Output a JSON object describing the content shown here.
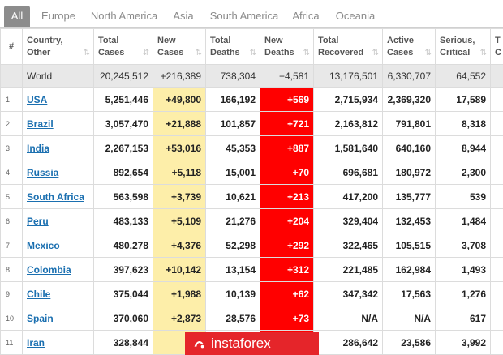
{
  "tabs": [
    "All",
    "Europe",
    "North America",
    "Asia",
    "South America",
    "Africa",
    "Oceania"
  ],
  "headers": {
    "hash": "#",
    "country": [
      "Country,",
      "Other"
    ],
    "total_cases": [
      "Total",
      "Cases"
    ],
    "new_cases": [
      "New",
      "Cases"
    ],
    "total_deaths": [
      "Total",
      "Deaths"
    ],
    "new_deaths": [
      "New",
      "Deaths"
    ],
    "total_recovered": [
      "Total",
      "Recovered"
    ],
    "active_cases": [
      "Active",
      "Cases"
    ],
    "serious_critical": [
      "Serious,",
      "Critical"
    ],
    "tot_cases_per_1m": [
      "T",
      "C"
    ]
  },
  "world": {
    "country": "World",
    "total_cases": "20,245,512",
    "new_cases": "+216,389",
    "total_deaths": "738,304",
    "new_deaths": "+4,581",
    "total_recovered": "13,176,501",
    "active_cases": "6,330,707",
    "serious_critical": "64,552"
  },
  "rows": [
    {
      "rank": "1",
      "country": "USA",
      "total_cases": "5,251,446",
      "new_cases": "+49,800",
      "total_deaths": "166,192",
      "new_deaths": "+569",
      "total_recovered": "2,715,934",
      "active_cases": "2,369,320",
      "serious_critical": "17,589"
    },
    {
      "rank": "2",
      "country": "Brazil",
      "total_cases": "3,057,470",
      "new_cases": "+21,888",
      "total_deaths": "101,857",
      "new_deaths": "+721",
      "total_recovered": "2,163,812",
      "active_cases": "791,801",
      "serious_critical": "8,318"
    },
    {
      "rank": "3",
      "country": "India",
      "total_cases": "2,267,153",
      "new_cases": "+53,016",
      "total_deaths": "45,353",
      "new_deaths": "+887",
      "total_recovered": "1,581,640",
      "active_cases": "640,160",
      "serious_critical": "8,944"
    },
    {
      "rank": "4",
      "country": "Russia",
      "total_cases": "892,654",
      "new_cases": "+5,118",
      "total_deaths": "15,001",
      "new_deaths": "+70",
      "total_recovered": "696,681",
      "active_cases": "180,972",
      "serious_critical": "2,300"
    },
    {
      "rank": "5",
      "country": "South Africa",
      "total_cases": "563,598",
      "new_cases": "+3,739",
      "total_deaths": "10,621",
      "new_deaths": "+213",
      "total_recovered": "417,200",
      "active_cases": "135,777",
      "serious_critical": "539"
    },
    {
      "rank": "6",
      "country": "Peru",
      "total_cases": "483,133",
      "new_cases": "+5,109",
      "total_deaths": "21,276",
      "new_deaths": "+204",
      "total_recovered": "329,404",
      "active_cases": "132,453",
      "serious_critical": "1,484"
    },
    {
      "rank": "7",
      "country": "Mexico",
      "total_cases": "480,278",
      "new_cases": "+4,376",
      "total_deaths": "52,298",
      "new_deaths": "+292",
      "total_recovered": "322,465",
      "active_cases": "105,515",
      "serious_critical": "3,708"
    },
    {
      "rank": "8",
      "country": "Colombia",
      "total_cases": "397,623",
      "new_cases": "+10,142",
      "total_deaths": "13,154",
      "new_deaths": "+312",
      "total_recovered": "221,485",
      "active_cases": "162,984",
      "serious_critical": "1,493"
    },
    {
      "rank": "9",
      "country": "Chile",
      "total_cases": "375,044",
      "new_cases": "+1,988",
      "total_deaths": "10,139",
      "new_deaths": "+62",
      "total_recovered": "347,342",
      "active_cases": "17,563",
      "serious_critical": "1,276"
    },
    {
      "rank": "10",
      "country": "Spain",
      "total_cases": "370,060",
      "new_cases": "+2,873",
      "total_deaths": "28,576",
      "new_deaths": "+73",
      "total_recovered": "N/A",
      "active_cases": "N/A",
      "serious_critical": "617"
    },
    {
      "rank": "11",
      "country": "Iran",
      "total_cases": "328,844",
      "new_cases": "+2,",
      "total_deaths": "",
      "new_deaths": "",
      "total_recovered": "286,642",
      "active_cases": "23,586",
      "serious_critical": "3,992"
    }
  ],
  "watermark": {
    "text": "instaforex"
  },
  "colors": {
    "new_cases_bg": "#fdeea9",
    "new_deaths_bg": "#ff0000",
    "world_row_bg": "#e8e8e8",
    "active_tab_bg": "#8c8c8c",
    "link": "#1a6fb0",
    "watermark_bg": "#e5252a"
  }
}
